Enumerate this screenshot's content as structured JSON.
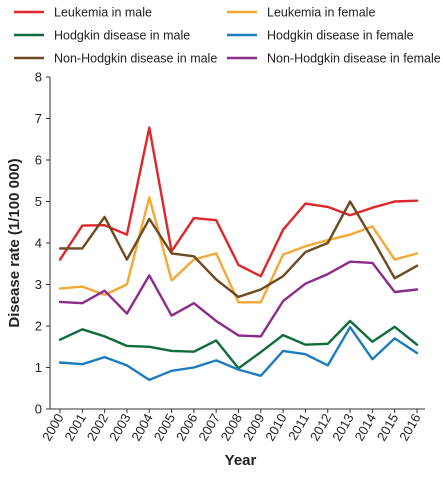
{
  "chart_data": {
    "type": "line",
    "title": "",
    "xlabel": "Year",
    "ylabel": "Disease rate (1/100 000)",
    "ylim": [
      0,
      8
    ],
    "yticks": [
      0,
      1,
      2,
      3,
      4,
      5,
      6,
      7,
      8
    ],
    "grid": false,
    "legend_position": "top",
    "x": [
      "2000",
      "2001",
      "2002",
      "2003",
      "2004",
      "2005",
      "2006",
      "2007",
      "2008",
      "2009",
      "2010",
      "2011",
      "2012",
      "2013",
      "2014",
      "2015",
      "2016"
    ],
    "series": [
      {
        "name": "Leukemia in male",
        "color": "#e0262b",
        "values": [
          3.6,
          4.42,
          4.43,
          4.2,
          6.78,
          3.8,
          4.6,
          4.55,
          3.47,
          3.2,
          4.32,
          4.95,
          4.87,
          4.67,
          4.85,
          5.0,
          5.02
        ]
      },
      {
        "name": "Leukemia in female",
        "color": "#f5a833",
        "values": [
          2.9,
          2.95,
          2.75,
          3.0,
          5.1,
          3.1,
          3.6,
          3.75,
          2.57,
          2.57,
          3.72,
          3.92,
          4.07,
          4.2,
          4.4,
          3.6,
          3.75
        ]
      },
      {
        "name": "Hodgkin disease in male",
        "color": "#0f6b3c",
        "values": [
          1.67,
          1.92,
          1.75,
          1.52,
          1.5,
          1.4,
          1.38,
          1.65,
          0.98,
          1.37,
          1.78,
          1.55,
          1.57,
          2.12,
          1.62,
          1.98,
          1.55
        ]
      },
      {
        "name": "Hodgkin disease in female",
        "color": "#1f7bbf",
        "values": [
          1.12,
          1.08,
          1.25,
          1.05,
          0.7,
          0.92,
          1.0,
          1.17,
          0.95,
          0.8,
          1.4,
          1.32,
          1.05,
          1.97,
          1.2,
          1.7,
          1.35
        ]
      },
      {
        "name": "Non-Hodgkin disease in male",
        "color": "#6e4a1f",
        "values": [
          3.87,
          3.87,
          4.63,
          3.6,
          4.58,
          3.75,
          3.68,
          3.12,
          2.7,
          2.88,
          3.2,
          3.78,
          4.0,
          5.0,
          4.1,
          3.15,
          3.45
        ]
      },
      {
        "name": "Non-Hodgkin disease in female",
        "color": "#8b2c8a",
        "values": [
          2.58,
          2.55,
          2.85,
          2.3,
          3.22,
          2.25,
          2.55,
          2.12,
          1.77,
          1.75,
          2.6,
          3.02,
          3.25,
          3.55,
          3.52,
          2.82,
          2.88
        ]
      }
    ]
  }
}
